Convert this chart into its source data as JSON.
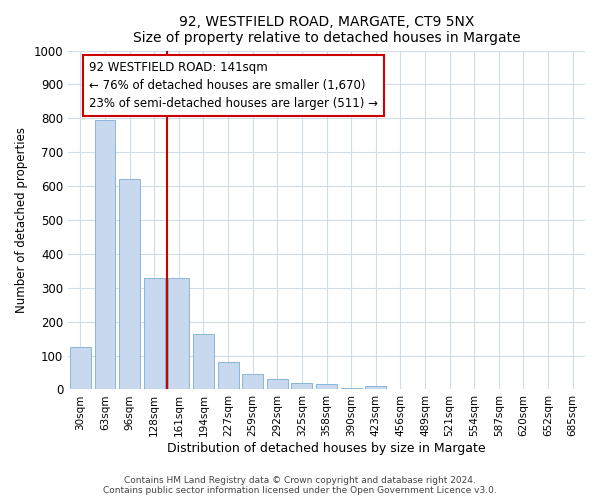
{
  "title1": "92, WESTFIELD ROAD, MARGATE, CT9 5NX",
  "title2": "Size of property relative to detached houses in Margate",
  "xlabel": "Distribution of detached houses by size in Margate",
  "ylabel": "Number of detached properties",
  "categories": [
    "30sqm",
    "63sqm",
    "96sqm",
    "128sqm",
    "161sqm",
    "194sqm",
    "227sqm",
    "259sqm",
    "292sqm",
    "325sqm",
    "358sqm",
    "390sqm",
    "423sqm",
    "456sqm",
    "489sqm",
    "521sqm",
    "554sqm",
    "587sqm",
    "620sqm",
    "652sqm",
    "685sqm"
  ],
  "values": [
    125,
    795,
    620,
    330,
    330,
    165,
    80,
    45,
    30,
    20,
    15,
    5,
    10,
    0,
    0,
    0,
    0,
    0,
    0,
    0,
    0
  ],
  "bar_color": "#c8d8ee",
  "bar_edge_color": "#7aafd4",
  "vline_x": 3.5,
  "vline_color": "#cc0000",
  "annotation_text": "92 WESTFIELD ROAD: 141sqm\n← 76% of detached houses are smaller (1,670)\n23% of semi-detached houses are larger (511) →",
  "annotation_box_color": "#ffffff",
  "annotation_box_edge": "#cc0000",
  "ylim": [
    0,
    1000
  ],
  "yticks": [
    0,
    100,
    200,
    300,
    400,
    500,
    600,
    700,
    800,
    900,
    1000
  ],
  "footer1": "Contains HM Land Registry data © Crown copyright and database right 2024.",
  "footer2": "Contains public sector information licensed under the Open Government Licence v3.0.",
  "bg_color": "#ffffff",
  "plot_bg_color": "#ffffff",
  "grid_color": "#d0dce8"
}
